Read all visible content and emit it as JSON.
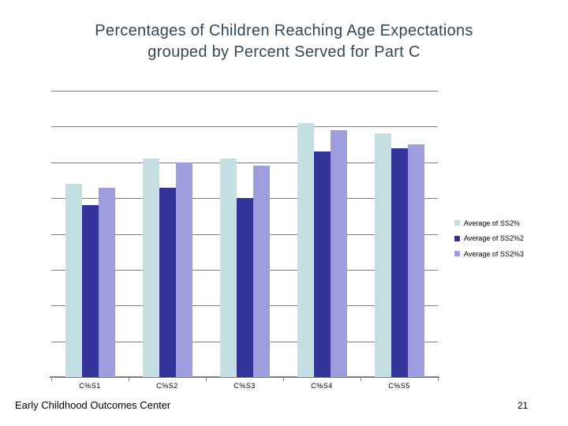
{
  "slide": {
    "title": "Percentages of Children Reaching Age Expectations\ngrouped by Percent Served for Part C",
    "footer": "Early Childhood Outcomes Center",
    "page_number": "21"
  },
  "colors": {
    "title_text": "#31485A",
    "gridline": "#808080",
    "axis": "#808080",
    "label_text": "#000000",
    "background": "#FFFFFF"
  },
  "chart_data": {
    "type": "bar",
    "title": "Percentages of Children Reaching Age Expectations grouped by Percent Served for Part C",
    "categories": [
      "C%S1",
      "C%S2",
      "C%S3",
      "C%S4",
      "C%S5"
    ],
    "series": [
      {
        "name": "Average of SS2%",
        "color": "#C3DFE2",
        "values": [
          54,
          61,
          61,
          71,
          68
        ]
      },
      {
        "name": "Average of SS2%2",
        "color": "#333399",
        "values": [
          48,
          53,
          50,
          63,
          64
        ]
      },
      {
        "name": "Average of SS2%3",
        "color": "#9E9DDD",
        "values": [
          53,
          60,
          59,
          69,
          65
        ]
      }
    ],
    "xlabel": "",
    "ylabel": "",
    "ylim": [
      0,
      80
    ],
    "gridline_interval": 10,
    "y_axis_labels_visible": false,
    "grid": true,
    "legend_position": "right"
  }
}
